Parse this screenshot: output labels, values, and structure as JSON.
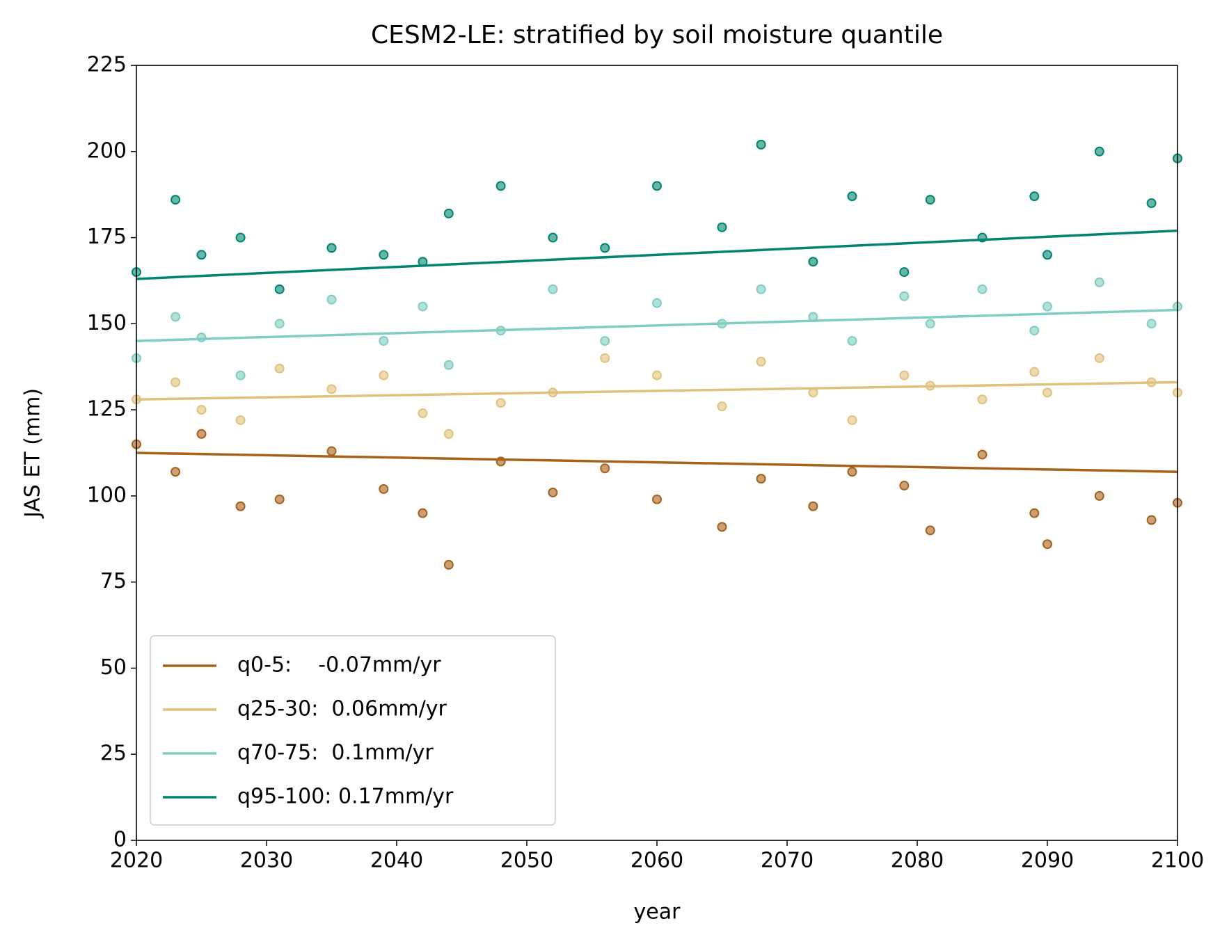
{
  "chart_data": {
    "type": "scatter",
    "title": "CESM2-LE: stratified by soil moisture quantile",
    "xlabel": "year",
    "ylabel": "JAS ET (mm)",
    "xlim": [
      2020,
      2100
    ],
    "xticks": [
      2020,
      2030,
      2040,
      2050,
      2060,
      2070,
      2080,
      2090,
      2100
    ],
    "ylim": [
      0,
      225
    ],
    "yticks": [
      0,
      25,
      50,
      75,
      100,
      125,
      150,
      175,
      200,
      225
    ],
    "legend": "lower left",
    "series": [
      {
        "name": "q0-5:    -0.07mm/yr",
        "color": "#a6611a",
        "x": [
          2020,
          2023,
          2025,
          2028,
          2031,
          2035,
          2039,
          2042,
          2044,
          2048,
          2052,
          2056,
          2060,
          2065,
          2068,
          2072,
          2075,
          2079,
          2081,
          2085,
          2089,
          2090,
          2094,
          2098,
          2100
        ],
        "values": [
          115,
          107,
          118,
          97,
          99,
          113,
          102,
          95,
          80,
          110,
          101,
          108,
          99,
          91,
          105,
          97,
          107,
          103,
          90,
          112,
          95,
          86,
          100,
          93,
          98
        ],
        "trend": {
          "x": [
            2020,
            2100
          ],
          "values": [
            112.5,
            107
          ]
        }
      },
      {
        "name": "q25-30:  0.06mm/yr",
        "color": "#dfc27d",
        "x": [
          2020,
          2023,
          2025,
          2028,
          2031,
          2035,
          2039,
          2042,
          2044,
          2048,
          2052,
          2056,
          2060,
          2065,
          2068,
          2072,
          2075,
          2079,
          2081,
          2085,
          2089,
          2090,
          2094,
          2098,
          2100
        ],
        "values": [
          128,
          133,
          125,
          122,
          137,
          131,
          135,
          124,
          118,
          127,
          130,
          140,
          135,
          126,
          139,
          130,
          122,
          135,
          132,
          128,
          136,
          130,
          140,
          133,
          130
        ],
        "trend": {
          "x": [
            2020,
            2100
          ],
          "values": [
            128,
            133
          ]
        }
      },
      {
        "name": "q70-75:  0.1mm/yr",
        "color": "#80cdc1",
        "x": [
          2020,
          2023,
          2025,
          2028,
          2031,
          2035,
          2039,
          2042,
          2044,
          2048,
          2052,
          2056,
          2060,
          2065,
          2068,
          2072,
          2075,
          2079,
          2081,
          2085,
          2089,
          2090,
          2094,
          2098,
          2100
        ],
        "values": [
          140,
          152,
          146,
          135,
          150,
          157,
          145,
          155,
          138,
          148,
          160,
          145,
          156,
          150,
          160,
          152,
          145,
          158,
          150,
          160,
          148,
          155,
          162,
          150,
          155
        ],
        "trend": {
          "x": [
            2020,
            2100
          ],
          "values": [
            145,
            154
          ]
        }
      },
      {
        "name": "q95-100: 0.17mm/yr",
        "color": "#018571",
        "x": [
          2020,
          2023,
          2025,
          2028,
          2031,
          2035,
          2039,
          2042,
          2044,
          2048,
          2052,
          2056,
          2060,
          2065,
          2068,
          2072,
          2075,
          2079,
          2081,
          2085,
          2089,
          2090,
          2094,
          2098,
          2100
        ],
        "values": [
          165,
          186,
          170,
          175,
          160,
          172,
          170,
          168,
          182,
          190,
          175,
          172,
          190,
          178,
          202,
          168,
          187,
          165,
          186,
          175,
          187,
          170,
          200,
          185,
          198
        ],
        "trend": {
          "x": [
            2020,
            2100
          ],
          "values": [
            163,
            177
          ]
        }
      }
    ]
  }
}
